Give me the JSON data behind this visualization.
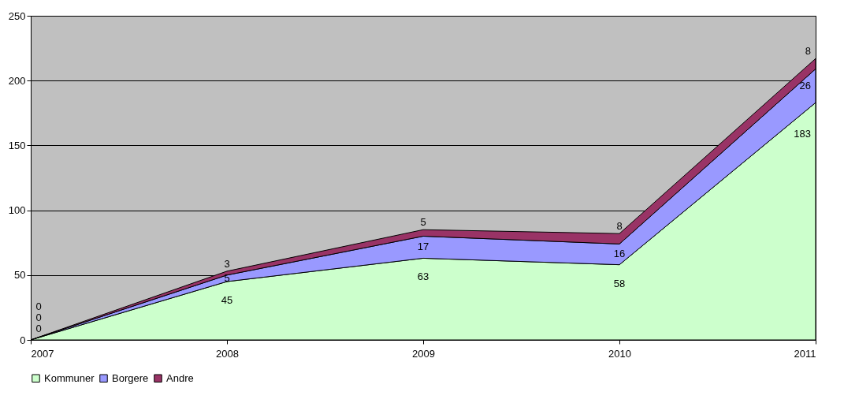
{
  "chart_data": {
    "type": "area",
    "stacked": true,
    "categories": [
      "2007",
      "2008",
      "2009",
      "2010",
      "2011"
    ],
    "series": [
      {
        "name": "Kommuner",
        "color": "#ccffcc",
        "values": [
          0,
          45,
          63,
          58,
          183
        ]
      },
      {
        "name": "Borgere",
        "color": "#9999ff",
        "values": [
          0,
          5,
          17,
          16,
          26
        ]
      },
      {
        "name": "Andre",
        "color": "#993366",
        "values": [
          0,
          3,
          5,
          8,
          8
        ]
      }
    ],
    "ylim": [
      0,
      250
    ],
    "yticks": [
      0,
      50,
      100,
      150,
      200,
      250
    ],
    "grid": "y",
    "legend": "bottom",
    "data_labels": true
  }
}
